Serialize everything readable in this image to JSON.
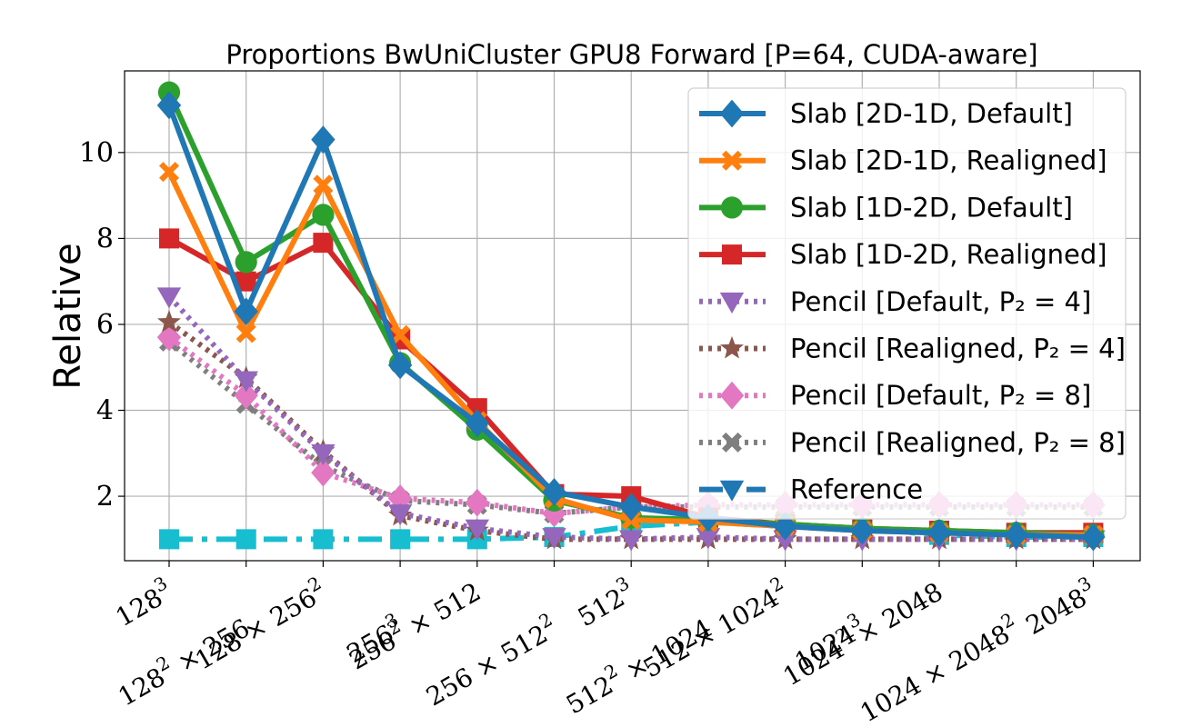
{
  "chart_data": {
    "type": "line",
    "title": "Proportions BwUniCluster GPU8 Forward [P=64, CUDA-aware]",
    "xlabel": "",
    "ylabel": "Relative",
    "yticks": [
      2,
      4,
      6,
      8,
      10
    ],
    "ylim": [
      0.5,
      11.9
    ],
    "grid": true,
    "legend_position": "top-right",
    "categories": [
      {
        "base": "128",
        "exp": "3"
      },
      {
        "base": "128",
        "exp": "2",
        "rest": " × 256"
      },
      {
        "base": "128 × 256",
        "exp": "2"
      },
      {
        "base": "256",
        "exp": "3"
      },
      {
        "base": "256",
        "exp": "2",
        "rest": " × 512"
      },
      {
        "base": "256 × 512",
        "exp": "2"
      },
      {
        "base": "512",
        "exp": "3"
      },
      {
        "base": "512",
        "exp": "2",
        "rest": " × 1024"
      },
      {
        "base": "512 × 1024",
        "exp": "2"
      },
      {
        "base": "1024",
        "exp": "3"
      },
      {
        "base": "1024",
        "exp": "2",
        "rest": " × 2048"
      },
      {
        "base": "1024 × 2048",
        "exp": "2"
      },
      {
        "base": "2048",
        "exp": "3"
      }
    ],
    "series": [
      {
        "name": "Slab [2D-1D, Default]",
        "color": "#1f77b4",
        "marker": "diamond",
        "dash": "solid",
        "values": [
          11.1,
          6.3,
          10.3,
          5.05,
          3.7,
          2.1,
          1.75,
          1.5,
          1.3,
          1.2,
          1.15,
          1.1,
          1.05
        ]
      },
      {
        "name": "Slab [2D-1D, Realigned]",
        "color": "#ff7f0e",
        "marker": "x",
        "dash": "solid",
        "values": [
          9.55,
          5.8,
          9.25,
          5.75,
          3.75,
          1.95,
          1.45,
          1.4,
          1.3,
          1.2,
          1.15,
          1.1,
          1.1
        ]
      },
      {
        "name": "Slab [1D-2D, Default]",
        "color": "#2ca02c",
        "marker": "circle",
        "dash": "solid",
        "values": [
          11.4,
          7.45,
          8.55,
          5.1,
          3.55,
          1.9,
          1.5,
          1.45,
          1.35,
          1.25,
          1.2,
          1.15,
          1.1
        ]
      },
      {
        "name": "Slab [1D-2D, Realigned]",
        "color": "#d62728",
        "marker": "square",
        "dash": "solid",
        "values": [
          8.0,
          7.0,
          7.9,
          5.65,
          4.05,
          2.05,
          2.0,
          1.5,
          1.35,
          1.25,
          1.2,
          1.15,
          1.15
        ]
      },
      {
        "name": "Pencil [Default, P₂ = 4]",
        "color": "#9467bd",
        "marker": "triangle-down",
        "dash": "dotted",
        "values": [
          6.65,
          4.7,
          3.0,
          1.6,
          1.25,
          1.05,
          1.0,
          1.05,
          1.0,
          1.0,
          1.0,
          1.0,
          1.0
        ]
      },
      {
        "name": "Pencil [Realigned, P₂ = 4]",
        "color": "#8c564b",
        "marker": "star",
        "dash": "dotted",
        "values": [
          6.05,
          4.75,
          3.05,
          1.55,
          1.2,
          1.0,
          1.0,
          1.0,
          1.0,
          1.0,
          1.0,
          1.0,
          1.0
        ]
      },
      {
        "name": "Pencil [Default, P₂ = 8]",
        "color": "#e377c2",
        "marker": "diamond",
        "dash": "dotted",
        "values": [
          5.7,
          4.35,
          2.55,
          1.95,
          1.85,
          1.6,
          1.75,
          1.8,
          1.8,
          1.8,
          1.8,
          1.8,
          1.8
        ]
      },
      {
        "name": "Pencil [Realigned, P₂ = 8]",
        "color": "#7f7f7f",
        "marker": "x",
        "dash": "dotted",
        "values": [
          5.6,
          4.15,
          2.7,
          1.9,
          1.8,
          1.6,
          1.75,
          1.75,
          1.75,
          1.75,
          1.75,
          1.75,
          1.75
        ]
      },
      {
        "name": "Reference",
        "color": "#17becf",
        "legend_color": "#1f77b4",
        "marker": "square",
        "legend_marker": "triangle-down",
        "dash": "dashdot",
        "values": [
          1.0,
          1.0,
          1.0,
          1.0,
          1.0,
          1.05,
          1.3,
          1.4,
          1.3,
          1.25,
          1.1,
          1.05,
          1.05
        ]
      }
    ]
  }
}
